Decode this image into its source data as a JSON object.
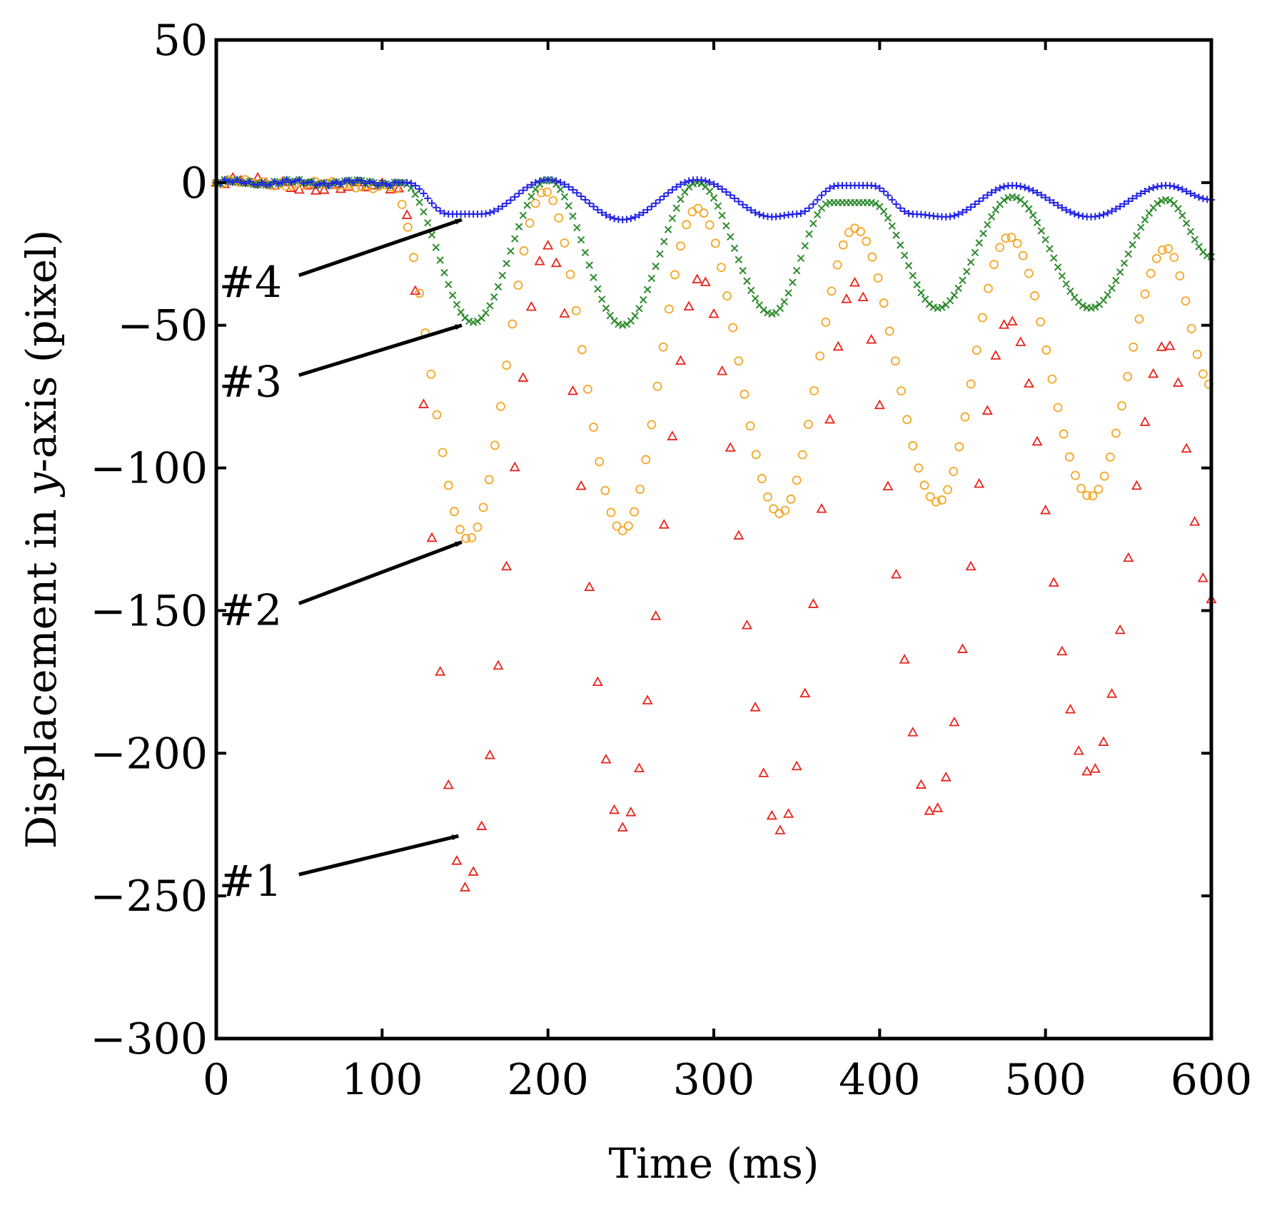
{
  "chart_data": {
    "type": "scatter",
    "title": "",
    "xlabel": "Time (ms)",
    "ylabel_parts": [
      "Displacement in ",
      "y",
      "-axis (pixel)"
    ],
    "xlim": [
      0,
      600
    ],
    "ylim": [
      -300,
      50
    ],
    "grid": false,
    "legend": "none",
    "xticks": [
      0,
      100,
      200,
      300,
      400,
      500,
      600
    ],
    "xtick_labels": [
      "0",
      "100",
      "200",
      "300",
      "400",
      "500",
      "600"
    ],
    "yticks": [
      50,
      0,
      -50,
      -100,
      -150,
      -200,
      -250,
      -300
    ],
    "ytick_labels": [
      "50",
      "0",
      "−50",
      "−100",
      "−150",
      "−200",
      "−250",
      "−300"
    ],
    "series": [
      {
        "name": "#1",
        "marker": "triangle",
        "color": "#e8241c",
        "dt": 5,
        "points": [
          [
            0,
            0
          ],
          [
            110,
            -2
          ],
          [
            150,
            -247
          ],
          [
            200,
            -22
          ],
          [
            245,
            -226
          ],
          [
            292,
            -33
          ],
          [
            340,
            -227
          ],
          [
            385,
            -35
          ],
          [
            432,
            -221
          ],
          [
            478,
            -48
          ],
          [
            527,
            -207
          ],
          [
            573,
            -56
          ],
          [
            600,
            -146
          ]
        ]
      },
      {
        "name": "#2",
        "marker": "circle",
        "color": "#f5a623",
        "dt": 3.5,
        "points": [
          [
            0,
            0
          ],
          [
            105,
            -1
          ],
          [
            152,
            -125
          ],
          [
            198,
            -3
          ],
          [
            245,
            -122
          ],
          [
            290,
            -9
          ],
          [
            340,
            -116
          ],
          [
            385,
            -16
          ],
          [
            435,
            -112
          ],
          [
            478,
            -19
          ],
          [
            527,
            -110
          ],
          [
            573,
            -23
          ],
          [
            600,
            -71
          ]
        ]
      },
      {
        "name": "#3",
        "marker": "x",
        "color": "#2e8b2e",
        "dt": 2.5,
        "points": [
          [
            0,
            0
          ],
          [
            112,
            0
          ],
          [
            155,
            -49
          ],
          [
            200,
            1
          ],
          [
            245,
            -50
          ],
          [
            290,
            0
          ],
          [
            335,
            -46
          ],
          [
            370,
            -7
          ],
          [
            395,
            -7
          ],
          [
            435,
            -44
          ],
          [
            480,
            -5
          ],
          [
            527,
            -44
          ],
          [
            573,
            -6
          ],
          [
            600,
            -26
          ]
        ]
      },
      {
        "name": "#4",
        "marker": "plus",
        "color": "#2323e6",
        "dt": 2.5,
        "points": [
          [
            0,
            0
          ],
          [
            115,
            0
          ],
          [
            140,
            -11
          ],
          [
            160,
            -11
          ],
          [
            200,
            1
          ],
          [
            245,
            -13
          ],
          [
            290,
            1
          ],
          [
            335,
            -12
          ],
          [
            350,
            -11
          ],
          [
            375,
            -1
          ],
          [
            395,
            -1
          ],
          [
            420,
            -11
          ],
          [
            440,
            -12
          ],
          [
            480,
            -1
          ],
          [
            527,
            -12
          ],
          [
            573,
            -1
          ],
          [
            600,
            -6
          ]
        ]
      }
    ],
    "annotations": [
      {
        "label": "#4",
        "text_at": [
          24,
          -35
        ],
        "arrow_to": [
          148,
          -13
        ]
      },
      {
        "label": "#3",
        "text_at": [
          24,
          -70
        ],
        "arrow_to": [
          148,
          -50
        ]
      },
      {
        "label": "#2",
        "text_at": [
          24,
          -150
        ],
        "arrow_to": [
          148,
          -126
        ]
      },
      {
        "label": "#1",
        "text_at": [
          24,
          -245
        ],
        "arrow_to": [
          146,
          -229
        ]
      }
    ]
  }
}
